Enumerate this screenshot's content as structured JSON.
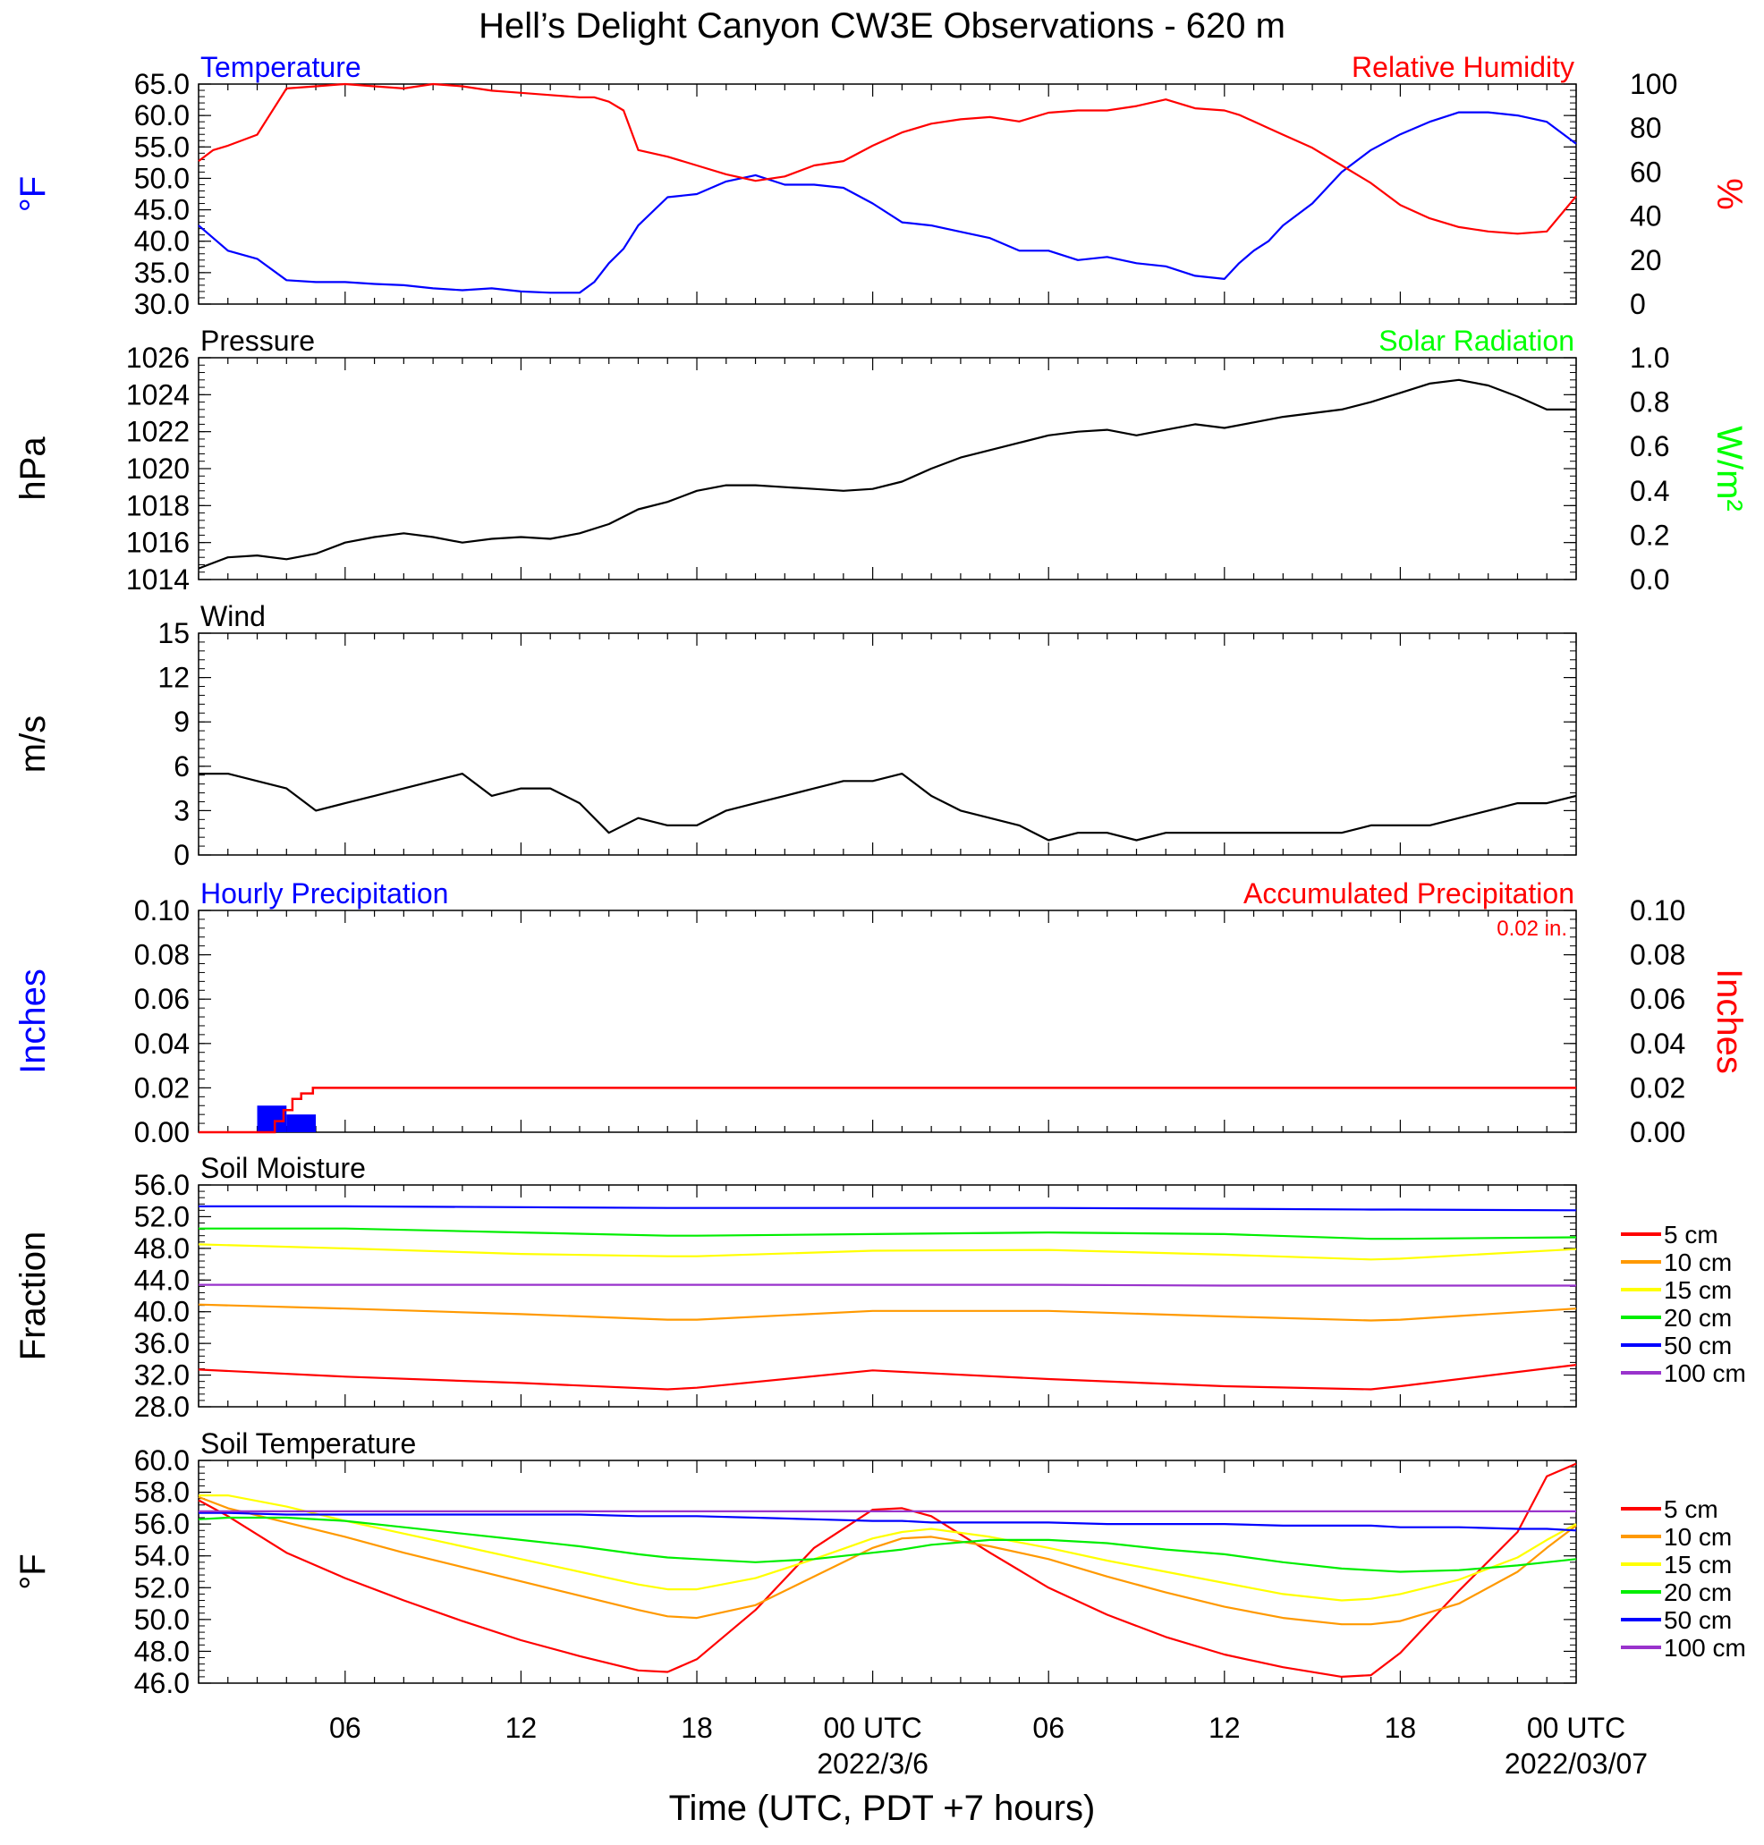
{
  "title": "Hell’s Delight Canyon CW3E Observations - 620 m",
  "xaxis": {
    "title": "Time (UTC, PDT +7 hours)",
    "tick_hours": [
      6,
      12,
      18,
      24,
      30,
      36,
      42,
      48
    ],
    "tick_labels": [
      "06",
      "12",
      "18",
      "00 UTC",
      "06",
      "12",
      "18",
      "00 UTC"
    ],
    "date_labels": [
      {
        "hour": 24,
        "text": "2022/3/6"
      },
      {
        "hour": 48,
        "text": "2022/03/07"
      }
    ],
    "range_hours": [
      1,
      48
    ]
  },
  "colors": {
    "temperature": "#0000ff",
    "humidity": "#ff0000",
    "pressure": "#000000",
    "solar": "#00ff00",
    "wind": "#000000",
    "barbs": "#ff0000",
    "hourly_precip": "#0000ff",
    "accum_precip": "#ff0000"
  },
  "depth_colors": {
    "5 cm": "#ff0000",
    "10 cm": "#ff9900",
    "15 cm": "#ffff00",
    "20 cm": "#00ee00",
    "50 cm": "#0000ff",
    "100 cm": "#9933cc"
  },
  "chart_data": [
    {
      "type": "line",
      "panel": "temperature_humidity",
      "title_left": "Temperature",
      "title_right": "Relative Humidity",
      "ylabel_left": "°F",
      "ylabel_right": "%",
      "ylim_left": [
        30,
        65
      ],
      "yticks_left": [
        "30.0",
        "35.0",
        "40.0",
        "45.0",
        "50.0",
        "55.0",
        "60.0",
        "65.0"
      ],
      "ylim_right": [
        0,
        100
      ],
      "yticks_right": [
        "0",
        "20",
        "40",
        "60",
        "80",
        "100"
      ],
      "x_hours": [
        1,
        1.5,
        2,
        3,
        4,
        5,
        6,
        7,
        8,
        9,
        10,
        11,
        12,
        13,
        14,
        14.5,
        15,
        15.5,
        16,
        17,
        18,
        19,
        20,
        21,
        22,
        23,
        24,
        25,
        26,
        27,
        28,
        29,
        30,
        31,
        32,
        33,
        34,
        35,
        36,
        36.5,
        37,
        37.5,
        38,
        39,
        40,
        41,
        42,
        43,
        44,
        45,
        46,
        47,
        48
      ],
      "series": [
        {
          "name": "Temperature",
          "axis": "left",
          "values": [
            42.5,
            40.5,
            38.5,
            37.2,
            33.8,
            33.5,
            33.5,
            33.2,
            33.0,
            32.5,
            32.2,
            32.5,
            32.0,
            31.8,
            31.8,
            33.5,
            36.5,
            38.8,
            42.5,
            47.0,
            47.5,
            49.5,
            50.5,
            49.0,
            49.0,
            48.5,
            46.0,
            43.0,
            42.5,
            41.5,
            40.5,
            38.5,
            38.5,
            37.0,
            37.5,
            36.5,
            36.0,
            34.5,
            34.0,
            36.5,
            38.5,
            40.0,
            42.5,
            46.0,
            51.0,
            54.5,
            57.0,
            59.0,
            60.5,
            60.5,
            60.0,
            59.0,
            55.5
          ]
        },
        {
          "name": "Relative Humidity",
          "axis": "right",
          "values": [
            65,
            70,
            72,
            77,
            98,
            99,
            100,
            99,
            98,
            100,
            99,
            97,
            96,
            95,
            94,
            94,
            92,
            88,
            70,
            67,
            63,
            59,
            56,
            58,
            63,
            65,
            72,
            78,
            82,
            84,
            85,
            83,
            87,
            88,
            88,
            90,
            93,
            89,
            88,
            86,
            83,
            80,
            77,
            71,
            63,
            55,
            45,
            39,
            35,
            33,
            32,
            33,
            49
          ]
        }
      ]
    },
    {
      "type": "line",
      "panel": "pressure_solar",
      "title_left": "Pressure",
      "title_right": "Solar Radiation",
      "ylabel_left": "hPa",
      "ylabel_right": "W/m²",
      "ylim_left": [
        1014,
        1026
      ],
      "yticks_left": [
        "1014",
        "1016",
        "1018",
        "1020",
        "1022",
        "1024",
        "1026"
      ],
      "ylim_right": [
        0,
        1.0
      ],
      "yticks_right": [
        "0.0",
        "0.2",
        "0.4",
        "0.6",
        "0.8",
        "1.0"
      ],
      "x_hours": [
        1,
        2,
        3,
        4,
        5,
        6,
        7,
        8,
        9,
        10,
        11,
        12,
        13,
        14,
        15,
        16,
        17,
        18,
        19,
        20,
        21,
        22,
        23,
        24,
        25,
        26,
        27,
        28,
        29,
        30,
        31,
        32,
        33,
        34,
        35,
        36,
        37,
        38,
        39,
        40,
        41,
        42,
        43,
        44,
        45,
        46,
        47,
        48
      ],
      "series": [
        {
          "name": "Pressure",
          "axis": "left",
          "values": [
            1014.6,
            1015.2,
            1015.3,
            1015.1,
            1015.4,
            1016.0,
            1016.3,
            1016.5,
            1016.3,
            1016.0,
            1016.2,
            1016.3,
            1016.2,
            1016.5,
            1017.0,
            1017.8,
            1018.2,
            1018.8,
            1019.1,
            1019.1,
            1019.0,
            1018.9,
            1018.8,
            1018.9,
            1019.3,
            1020.0,
            1020.6,
            1021.0,
            1021.4,
            1021.8,
            1022.0,
            1022.1,
            1021.8,
            1022.1,
            1022.4,
            1022.2,
            1022.5,
            1022.8,
            1023.0,
            1023.2,
            1023.6,
            1024.1,
            1024.6,
            1024.8,
            1024.5,
            1023.9,
            1023.2,
            1023.2
          ]
        }
      ]
    },
    {
      "type": "line",
      "panel": "wind",
      "title_left": "Wind",
      "ylabel_left": "m/s",
      "ylim_left": [
        0,
        15
      ],
      "yticks_left": [
        "0",
        "3",
        "6",
        "9",
        "12",
        "15"
      ],
      "x_hours": [
        1,
        2,
        3,
        4,
        5,
        6,
        7,
        8,
        9,
        10,
        11,
        12,
        13,
        14,
        15,
        16,
        17,
        18,
        19,
        20,
        21,
        22,
        23,
        24,
        25,
        26,
        27,
        28,
        29,
        30,
        31,
        32,
        33,
        34,
        35,
        36,
        37,
        38,
        39,
        40,
        41,
        42,
        43,
        44,
        45,
        46,
        47,
        48
      ],
      "series": [
        {
          "name": "Wind Speed",
          "axis": "left",
          "values": [
            5.5,
            5.5,
            5.0,
            4.5,
            3.0,
            3.5,
            4.0,
            4.5,
            5.0,
            5.5,
            4.0,
            4.5,
            4.5,
            3.5,
            1.5,
            2.5,
            2.0,
            2.0,
            3.0,
            3.5,
            4.0,
            4.5,
            5.0,
            5.0,
            5.5,
            4.0,
            3.0,
            2.5,
            2.0,
            1.0,
            1.5,
            1.5,
            1.0,
            1.5,
            1.5,
            1.5,
            1.5,
            1.5,
            1.5,
            1.5,
            2.0,
            2.0,
            2.0,
            2.5,
            3.0,
            3.5,
            3.5,
            4.0
          ]
        }
      ]
    },
    {
      "type": "bar",
      "panel": "precipitation",
      "title_left": "Hourly Precipitation",
      "title_right": "Accumulated Precipitation",
      "annotation": "0.02 in.",
      "ylabel_left": "Inches",
      "ylabel_right": "Inches",
      "ylim_left": [
        0,
        0.1
      ],
      "yticks_left": [
        "0.00",
        "0.02",
        "0.04",
        "0.06",
        "0.08",
        "0.10"
      ],
      "ylim_right": [
        0,
        0.1
      ],
      "yticks_right": [
        "0.00",
        "0.02",
        "0.04",
        "0.06",
        "0.08",
        "0.10"
      ],
      "bars": [
        {
          "start_hour": 3,
          "end_hour": 4,
          "value": 0.012
        },
        {
          "start_hour": 4,
          "end_hour": 5,
          "value": 0.008
        }
      ],
      "accumulated": {
        "x_hours": [
          1,
          3.6,
          3.6,
          3.9,
          3.9,
          4.2,
          4.2,
          4.5,
          4.5,
          4.9,
          4.9,
          48
        ],
        "values": [
          0,
          0,
          0.005,
          0.005,
          0.01,
          0.01,
          0.015,
          0.015,
          0.0175,
          0.0175,
          0.02,
          0.02
        ]
      }
    },
    {
      "type": "line",
      "panel": "soil_moisture",
      "title_left": "Soil Moisture",
      "ylabel_left": "Fraction",
      "ylim_left": [
        28,
        56
      ],
      "yticks_left": [
        "28.0",
        "32.0",
        "36.0",
        "40.0",
        "44.0",
        "48.0",
        "52.0",
        "56.0"
      ],
      "legend": [
        "5 cm",
        "10 cm",
        "15 cm",
        "20 cm",
        "50 cm",
        "100 cm"
      ],
      "x_hours": [
        1,
        6,
        12,
        17,
        18,
        24,
        30,
        36,
        41,
        42,
        48
      ],
      "series": [
        {
          "name": "5 cm",
          "values": [
            32.7,
            31.8,
            31.0,
            30.2,
            30.4,
            32.6,
            31.5,
            30.6,
            30.2,
            30.6,
            33.3
          ]
        },
        {
          "name": "10 cm",
          "values": [
            40.9,
            40.4,
            39.7,
            39.0,
            39.0,
            40.1,
            40.1,
            39.4,
            38.9,
            39.0,
            40.4
          ]
        },
        {
          "name": "15 cm",
          "values": [
            48.5,
            48.0,
            47.3,
            47.0,
            47.0,
            47.7,
            47.8,
            47.2,
            46.6,
            46.7,
            47.9
          ]
        },
        {
          "name": "20 cm",
          "values": [
            50.5,
            50.5,
            50.0,
            49.6,
            49.6,
            49.8,
            50.0,
            49.8,
            49.2,
            49.2,
            49.4
          ]
        },
        {
          "name": "50 cm",
          "values": [
            53.3,
            53.3,
            53.2,
            53.1,
            53.1,
            53.1,
            53.1,
            53.0,
            52.9,
            52.9,
            52.8
          ]
        },
        {
          "name": "100 cm",
          "values": [
            43.4,
            43.4,
            43.4,
            43.4,
            43.4,
            43.4,
            43.4,
            43.3,
            43.3,
            43.3,
            43.3
          ]
        }
      ]
    },
    {
      "type": "line",
      "panel": "soil_temperature",
      "title_left": "Soil Temperature",
      "ylabel_left": "°F",
      "ylim_left": [
        46,
        60
      ],
      "yticks_left": [
        "46.0",
        "48.0",
        "50.0",
        "52.0",
        "54.0",
        "56.0",
        "58.0",
        "60.0"
      ],
      "legend": [
        "5 cm",
        "10 cm",
        "15 cm",
        "20 cm",
        "50 cm",
        "100 cm"
      ],
      "x_hours": [
        1,
        2,
        4,
        6,
        8,
        10,
        12,
        14,
        16,
        17,
        18,
        20,
        22,
        24,
        25,
        26,
        28,
        30,
        32,
        34,
        36,
        38,
        40,
        41,
        42,
        44,
        46,
        47,
        48
      ],
      "series": [
        {
          "name": "5 cm",
          "values": [
            57.5,
            56.5,
            54.2,
            52.6,
            51.2,
            49.9,
            48.7,
            47.7,
            46.8,
            46.7,
            47.5,
            50.6,
            54.5,
            56.9,
            57.0,
            56.5,
            54.2,
            52.0,
            50.3,
            48.9,
            47.8,
            47.0,
            46.4,
            46.5,
            47.9,
            51.8,
            55.5,
            59.0,
            59.8
          ]
        },
        {
          "name": "10 cm",
          "values": [
            57.7,
            57.0,
            56.1,
            55.2,
            54.2,
            53.3,
            52.4,
            51.5,
            50.6,
            50.2,
            50.1,
            50.9,
            52.7,
            54.5,
            55.1,
            55.2,
            54.6,
            53.8,
            52.7,
            51.7,
            50.8,
            50.1,
            49.7,
            49.7,
            49.9,
            51.0,
            53.0,
            54.5,
            55.9
          ]
        },
        {
          "name": "15 cm",
          "values": [
            57.8,
            57.8,
            57.1,
            56.2,
            55.4,
            54.6,
            53.8,
            53.0,
            52.2,
            51.9,
            51.9,
            52.6,
            53.8,
            55.1,
            55.5,
            55.7,
            55.2,
            54.5,
            53.7,
            53.0,
            52.3,
            51.6,
            51.2,
            51.3,
            51.6,
            52.5,
            53.9,
            55.0,
            56.0
          ]
        },
        {
          "name": "20 cm",
          "values": [
            56.3,
            56.4,
            56.4,
            56.2,
            55.8,
            55.4,
            55.0,
            54.6,
            54.1,
            53.9,
            53.8,
            53.6,
            53.8,
            54.2,
            54.4,
            54.7,
            55.0,
            55.0,
            54.8,
            54.4,
            54.1,
            53.6,
            53.2,
            53.1,
            53.0,
            53.1,
            53.4,
            53.6,
            53.8
          ]
        },
        {
          "name": "50 cm",
          "values": [
            56.7,
            56.7,
            56.6,
            56.6,
            56.6,
            56.6,
            56.6,
            56.6,
            56.5,
            56.5,
            56.5,
            56.4,
            56.3,
            56.2,
            56.2,
            56.1,
            56.1,
            56.1,
            56.0,
            56.0,
            56.0,
            55.9,
            55.9,
            55.9,
            55.8,
            55.8,
            55.7,
            55.7,
            55.6
          ]
        },
        {
          "name": "100 cm",
          "values": [
            56.8,
            56.8,
            56.8,
            56.8,
            56.8,
            56.8,
            56.8,
            56.8,
            56.8,
            56.8,
            56.8,
            56.8,
            56.8,
            56.8,
            56.8,
            56.8,
            56.8,
            56.8,
            56.8,
            56.8,
            56.8,
            56.8,
            56.8,
            56.8,
            56.8,
            56.8,
            56.8,
            56.8,
            56.8
          ]
        }
      ]
    }
  ]
}
